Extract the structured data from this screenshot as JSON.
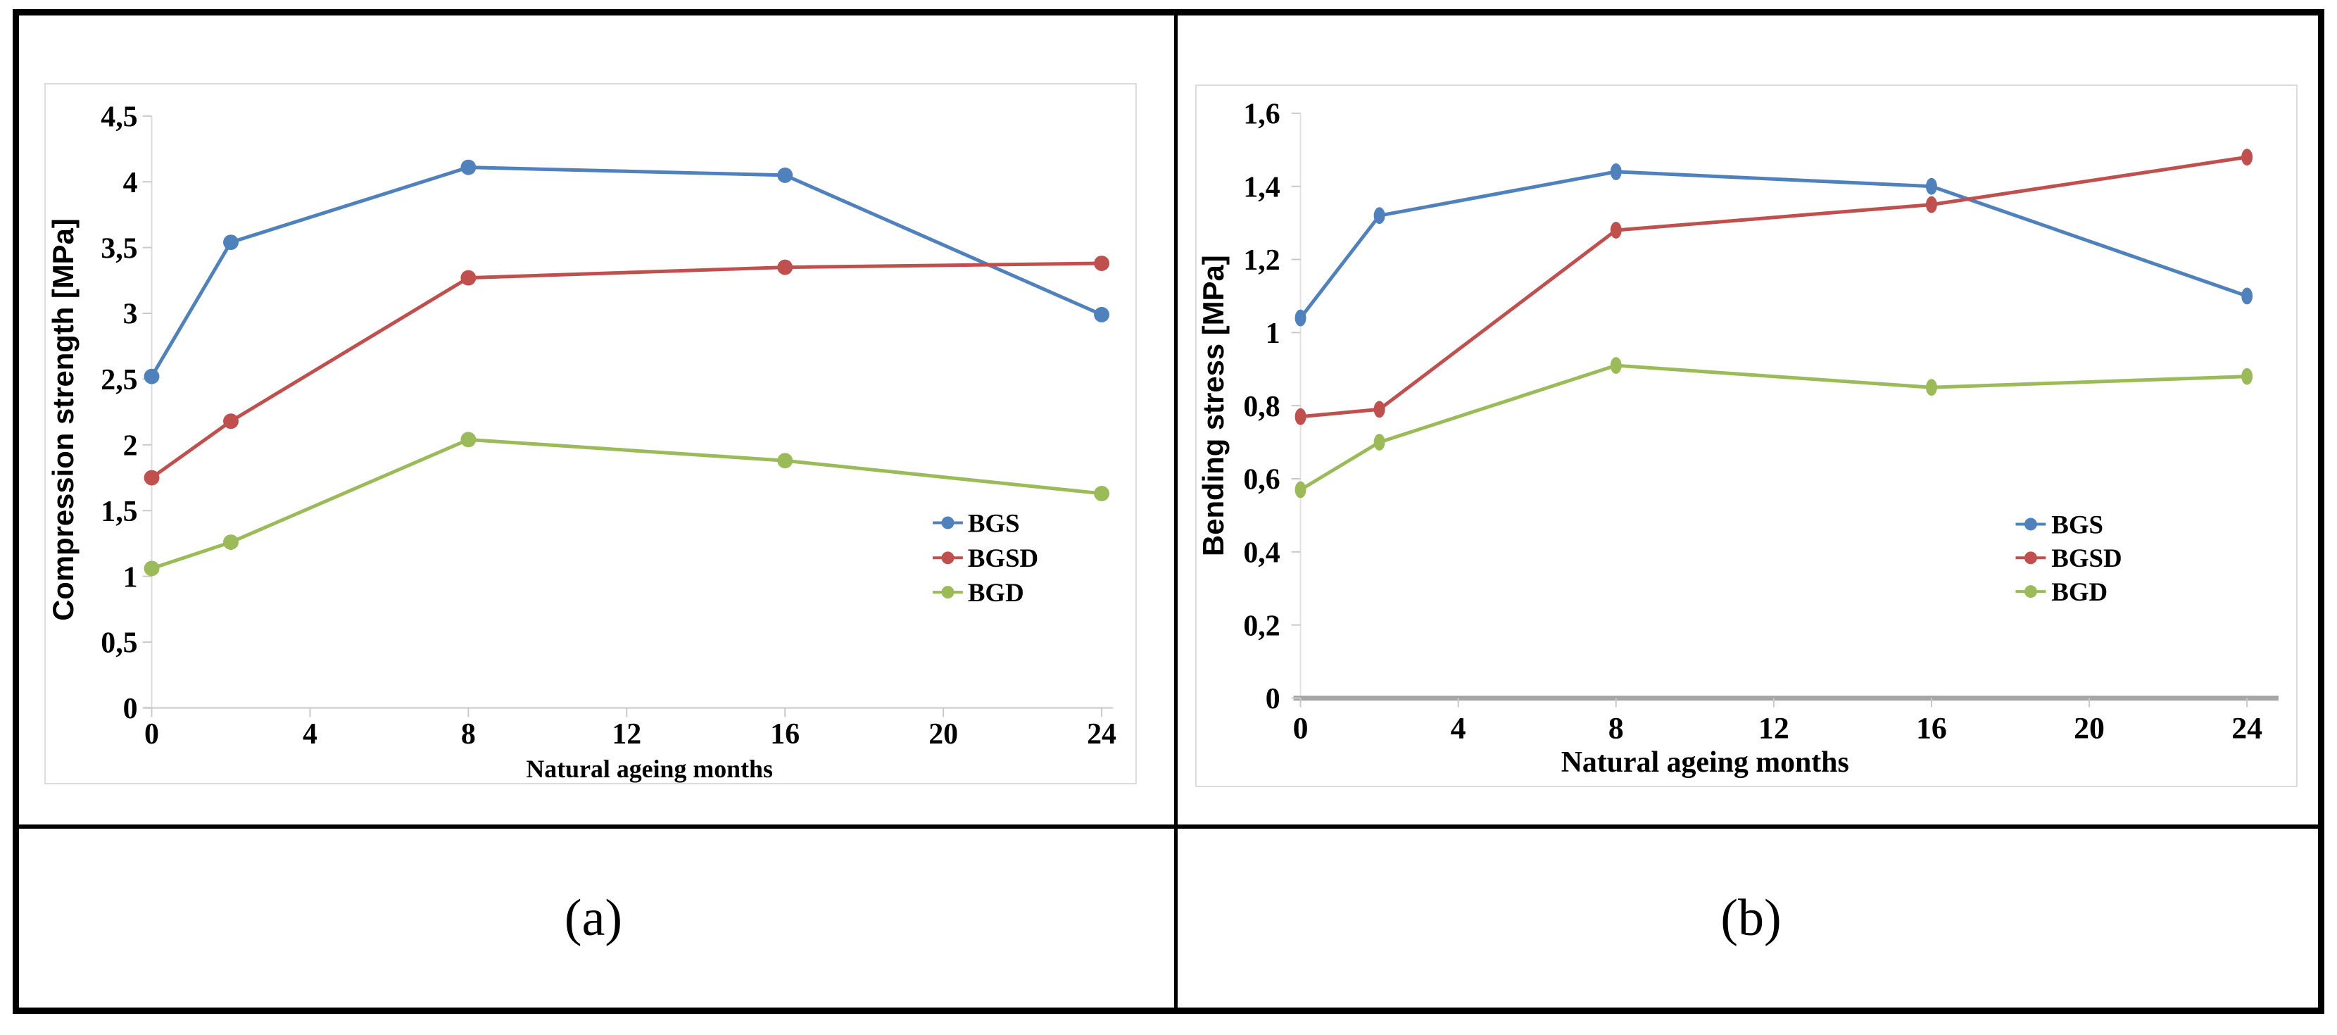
{
  "figure": {
    "captions": {
      "a": "(a)",
      "b": "(b)"
    }
  },
  "colors": {
    "series_blue": "#4F81BD",
    "series_red": "#C0504D",
    "series_green": "#9BBB59",
    "axis_light_gray": "#D9D9D9",
    "axis_dark_gray": "#A6A6A6",
    "frame_black": "#000000"
  },
  "chart_data": [
    {
      "id": "a",
      "type": "line",
      "caption": "(a)",
      "ylabel": "Compression strength [MPa]",
      "xlabel": "Natural ageing months",
      "x": [
        0,
        2,
        8,
        16,
        24
      ],
      "xlim": [
        0,
        24
      ],
      "ylim": [
        0,
        4.5
      ],
      "grid": false,
      "legend_position": "inside-right",
      "xticks": {
        "values": [
          0,
          4,
          8,
          12,
          16,
          20,
          24
        ],
        "labels": [
          "0",
          "4",
          "8",
          "12",
          "16",
          "20",
          "24"
        ]
      },
      "yticks": {
        "values": [
          0,
          0.5,
          1,
          1.5,
          2,
          2.5,
          3,
          3.5,
          4,
          4.5
        ],
        "labels": [
          "0",
          "0,5",
          "1",
          "1,5",
          "2",
          "2,5",
          "3",
          "3,5",
          "4",
          "4,5"
        ]
      },
      "series": [
        {
          "name": "BGS",
          "color": "#4F81BD",
          "values": [
            2.52,
            3.54,
            4.11,
            4.05,
            2.99
          ]
        },
        {
          "name": "BGSD",
          "color": "#C0504D",
          "values": [
            1.75,
            2.18,
            3.27,
            3.35,
            3.38
          ]
        },
        {
          "name": "BGD",
          "color": "#9BBB59",
          "values": [
            1.06,
            1.26,
            2.04,
            1.88,
            1.63
          ]
        }
      ]
    },
    {
      "id": "b",
      "type": "line",
      "caption": "(b)",
      "ylabel": "Bending stress [MPa]",
      "xlabel": "Natural ageing months",
      "x": [
        0,
        2,
        8,
        16,
        24
      ],
      "xlim": [
        0,
        24
      ],
      "ylim": [
        0,
        1.6
      ],
      "grid": false,
      "legend_position": "inside-right",
      "xticks": {
        "values": [
          0,
          4,
          8,
          12,
          16,
          20,
          24
        ],
        "labels": [
          "0",
          "4",
          "8",
          "12",
          "16",
          "20",
          "24"
        ]
      },
      "yticks": {
        "values": [
          0,
          0.2,
          0.4,
          0.6,
          0.8,
          1,
          1.2,
          1.4,
          1.6
        ],
        "labels": [
          "0",
          "0,2",
          "0,4",
          "0,6",
          "0,8",
          "1",
          "1,2",
          "1,4",
          "1,6"
        ]
      },
      "series": [
        {
          "name": "BGS",
          "color": "#4F81BD",
          "values": [
            1.04,
            1.32,
            1.44,
            1.4,
            1.1
          ]
        },
        {
          "name": "BGSD",
          "color": "#C0504D",
          "values": [
            0.77,
            0.79,
            1.28,
            1.35,
            1.48
          ]
        },
        {
          "name": "BGD",
          "color": "#9BBB59",
          "values": [
            0.57,
            0.7,
            0.91,
            0.85,
            0.88
          ]
        }
      ]
    }
  ]
}
